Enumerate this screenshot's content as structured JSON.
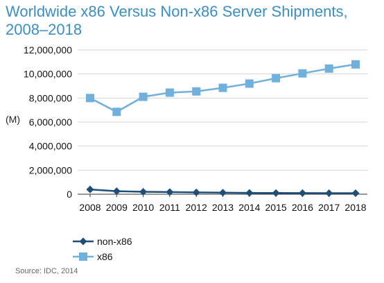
{
  "chart_data": {
    "type": "line",
    "title": "Worldwide x86 Versus Non-x86 Server Shipments, 2008–2018",
    "ylabel": "(M)",
    "x": [
      "2008",
      "2009",
      "2010",
      "2011",
      "2012",
      "2013",
      "2014",
      "2015",
      "2016",
      "2017",
      "2018"
    ],
    "ylim": [
      0,
      12000000
    ],
    "yticks": [
      "0",
      "2,000,000",
      "4,000,000",
      "6,000,000",
      "8,000,000",
      "10,000,000",
      "12,000,000"
    ],
    "grid": true,
    "legend": "bottom-left",
    "series": [
      {
        "name": "non-x86",
        "color": "#1f4e79",
        "marker": "diamond",
        "values": [
          400000,
          250000,
          200000,
          180000,
          150000,
          130000,
          110000,
          100000,
          95000,
          90000,
          85000
        ]
      },
      {
        "name": "x86",
        "color": "#6fb0dc",
        "marker": "square",
        "values": [
          8000000,
          6850000,
          8100000,
          8450000,
          8550000,
          8850000,
          9200000,
          9650000,
          10050000,
          10450000,
          10800000
        ]
      }
    ],
    "source": "Source: IDC, 2014"
  }
}
